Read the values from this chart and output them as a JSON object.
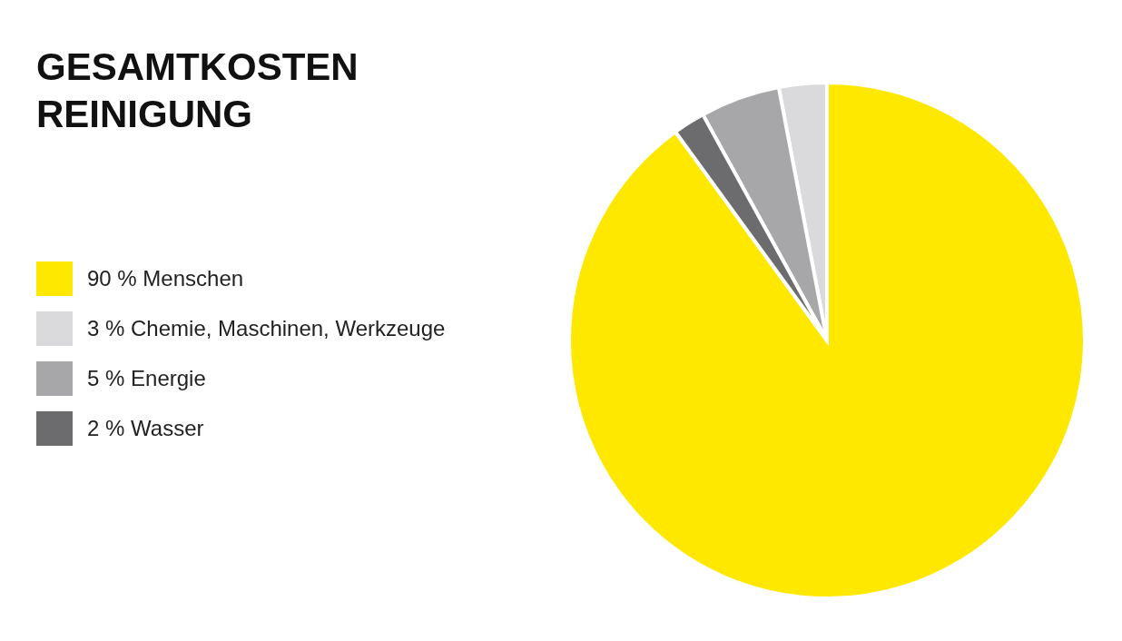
{
  "chart_data": {
    "type": "pie",
    "title": "GESAMTKOSTEN\nREINIGUNG",
    "categories": [
      "Menschen",
      "Chemie, Maschinen, Werkzeuge",
      "Energie",
      "Wasser"
    ],
    "values": [
      90,
      3,
      5,
      2
    ],
    "value_labels": [
      "90 %",
      "3 %",
      "5 %",
      "2 %"
    ],
    "colors": [
      "#ffe800",
      "#dadadc",
      "#a7a7a9",
      "#6c6c6e"
    ],
    "legend": "left"
  }
}
